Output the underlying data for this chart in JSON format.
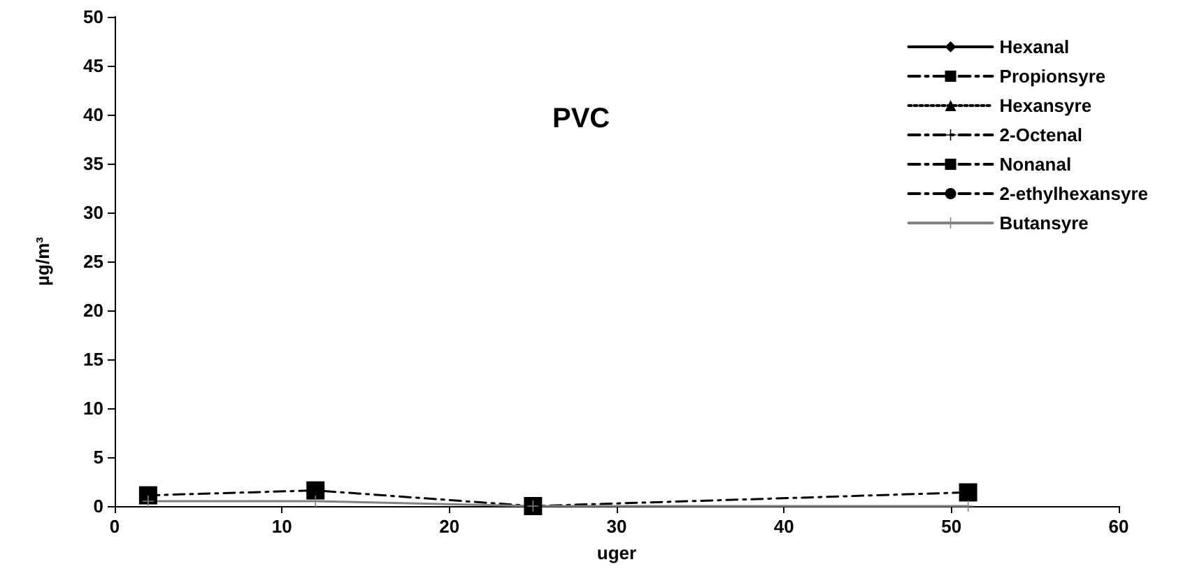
{
  "chart_data": {
    "type": "line",
    "title": "PVC",
    "xlabel": "uger",
    "ylabel": "µg/m³",
    "x": [
      2,
      12,
      25,
      51
    ],
    "series": [
      {
        "name": "Hexanal",
        "color": "#000000",
        "marker": "diamond",
        "line_style": "solid",
        "values": [
          null,
          null,
          null,
          null
        ]
      },
      {
        "name": "Propionsyre",
        "color": "#000000",
        "marker": "square",
        "line_style": "dashed",
        "values": [
          null,
          null,
          null,
          null
        ]
      },
      {
        "name": "Hexansyre",
        "color": "#000000",
        "marker": "triangle",
        "line_style": "dotted",
        "values": [
          null,
          null,
          null,
          null
        ]
      },
      {
        "name": "2-Octenal",
        "color": "#000000",
        "marker": "cross",
        "line_style": "dashed",
        "values": [
          null,
          null,
          null,
          null
        ]
      },
      {
        "name": "Nonanal",
        "color": "#000000",
        "marker": "square",
        "line_style": "dashed",
        "values": [
          1.1,
          1.6,
          0,
          1.4
        ]
      },
      {
        "name": "2-ethylhexansyre",
        "color": "#000000",
        "marker": "circle",
        "line_style": "dashed",
        "values": [
          null,
          null,
          null,
          null
        ]
      },
      {
        "name": "Butansyre",
        "color": "#808080",
        "marker": "cross",
        "line_style": "solid",
        "values": [
          0.5,
          0.5,
          0,
          0
        ]
      }
    ],
    "xlim": [
      0,
      60
    ],
    "xticks": [
      0,
      10,
      20,
      30,
      40,
      50,
      60
    ],
    "ylim": [
      0,
      50
    ],
    "yticks": [
      0,
      5,
      10,
      15,
      20,
      25,
      30,
      35,
      40,
      45,
      50
    ],
    "grid": false,
    "legend": "top right"
  }
}
